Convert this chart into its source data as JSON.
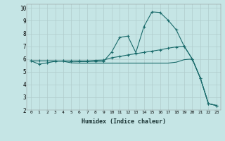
{
  "xlabel": "Humidex (Indice chaleur)",
  "bg_color": "#c5e5e5",
  "grid_color": "#b0cccc",
  "line_color": "#1a6b6b",
  "xlim": [
    -0.5,
    23.5
  ],
  "ylim": [
    2,
    10.3
  ],
  "xticks": [
    0,
    1,
    2,
    3,
    4,
    5,
    6,
    7,
    8,
    9,
    10,
    11,
    12,
    13,
    14,
    15,
    16,
    17,
    18,
    19,
    20,
    21,
    22,
    23
  ],
  "yticks": [
    2,
    3,
    4,
    5,
    6,
    7,
    8,
    9,
    10
  ],
  "line1_x": [
    0,
    1,
    2,
    3,
    4,
    5,
    6,
    7,
    8,
    9,
    10,
    11,
    12,
    13,
    14,
    15,
    16,
    17,
    18,
    19,
    20,
    21,
    22,
    23
  ],
  "line1_y": [
    5.85,
    5.6,
    5.7,
    5.82,
    5.85,
    5.82,
    5.8,
    5.8,
    5.82,
    5.82,
    6.55,
    7.7,
    7.8,
    6.5,
    8.55,
    9.7,
    9.65,
    9.05,
    8.3,
    7.0,
    6.0,
    4.5,
    2.5,
    2.35
  ],
  "line2_x": [
    0,
    1,
    2,
    3,
    4,
    5,
    6,
    7,
    8,
    9,
    10,
    11,
    12,
    13,
    14,
    15,
    16,
    17,
    18,
    19,
    20,
    21,
    22,
    23
  ],
  "line2_y": [
    5.85,
    5.85,
    5.85,
    5.85,
    5.85,
    5.85,
    5.85,
    5.85,
    5.9,
    5.92,
    6.1,
    6.2,
    6.32,
    6.42,
    6.52,
    6.62,
    6.72,
    6.85,
    6.95,
    7.0,
    6.0,
    4.5,
    2.5,
    2.35
  ],
  "line3_x": [
    0,
    1,
    2,
    3,
    4,
    5,
    6,
    7,
    8,
    9,
    10,
    11,
    12,
    13,
    14,
    15,
    16,
    17,
    18,
    19,
    20,
    21,
    22,
    23
  ],
  "line3_y": [
    5.85,
    5.85,
    5.85,
    5.85,
    5.82,
    5.7,
    5.68,
    5.68,
    5.68,
    5.68,
    5.68,
    5.68,
    5.68,
    5.68,
    5.68,
    5.68,
    5.68,
    5.68,
    5.75,
    5.95,
    6.0,
    4.5,
    2.5,
    2.35
  ]
}
